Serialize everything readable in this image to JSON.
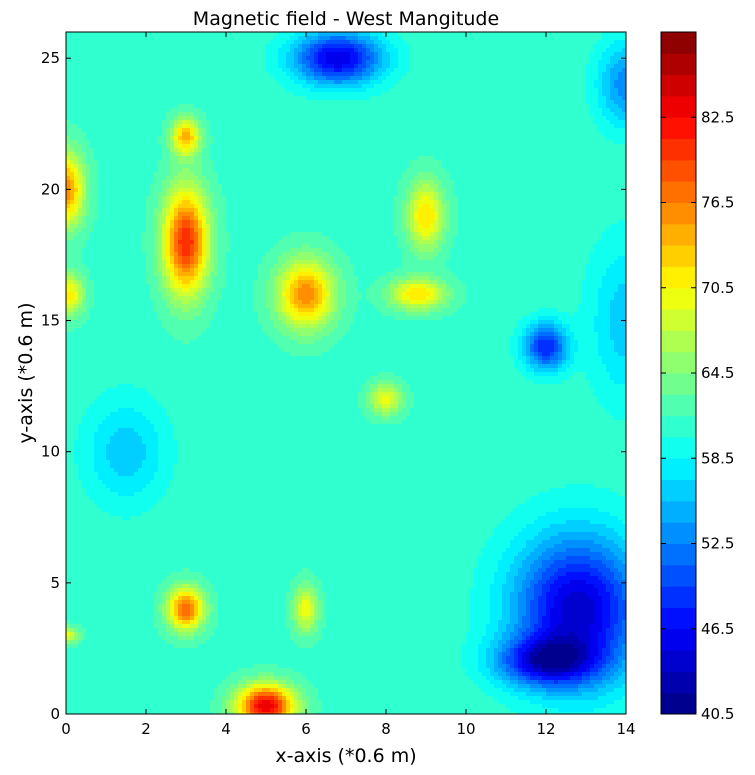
{
  "chart_data": {
    "type": "heatmap",
    "subtype": "filled-contour",
    "title": "Magnetic field - West Mangitude",
    "xlabel": "x-axis (*0.6 m)",
    "ylabel": "y-axis (*0.6 m)",
    "xlim": [
      0,
      14
    ],
    "ylim": [
      0,
      26
    ],
    "x_ticks": [
      0,
      2,
      4,
      6,
      8,
      10,
      12,
      14
    ],
    "y_ticks": [
      0,
      5,
      10,
      15,
      20,
      25
    ],
    "colormap": "jet",
    "colorbar": {
      "range": [
        40.5,
        88.5
      ],
      "level_step": 1.5,
      "tick_values": [
        40.5,
        46.5,
        52.5,
        58.5,
        64.5,
        70.5,
        76.5,
        82.5
      ],
      "tick_labels": [
        "40.5",
        "46.5",
        "52.5",
        "58.5",
        "64.5",
        "70.5",
        "76.5",
        "82.5"
      ]
    },
    "grid": false,
    "background_level": 61,
    "features": [
      {
        "x": 3,
        "y": 18,
        "value": 81,
        "sx": 0.55,
        "sy": 2.0,
        "label": "hotspot"
      },
      {
        "x": 3,
        "y": 22,
        "value": 74,
        "sx": 0.35,
        "sy": 0.7,
        "label": "hotspot"
      },
      {
        "x": 3,
        "y": 4,
        "value": 78,
        "sx": 0.45,
        "sy": 0.8,
        "label": "hotspot"
      },
      {
        "x": 5,
        "y": 0.3,
        "value": 84,
        "sx": 0.7,
        "sy": 0.8,
        "label": "hotspot"
      },
      {
        "x": 6,
        "y": 16,
        "value": 76,
        "sx": 0.7,
        "sy": 1.3,
        "label": "hotspot"
      },
      {
        "x": 8.8,
        "y": 16,
        "value": 72,
        "sx": 0.7,
        "sy": 0.6,
        "label": "hotspot"
      },
      {
        "x": 9,
        "y": 19,
        "value": 72,
        "sx": 0.45,
        "sy": 1.3,
        "label": "hotspot"
      },
      {
        "x": 0,
        "y": 20,
        "value": 76,
        "sx": 0.45,
        "sy": 1.4,
        "label": "hotspot"
      },
      {
        "x": 0.1,
        "y": 16,
        "value": 71,
        "sx": 0.35,
        "sy": 0.8,
        "label": "hotspot"
      },
      {
        "x": 0,
        "y": 3,
        "value": 70,
        "sx": 0.3,
        "sy": 0.3,
        "label": "hotspot"
      },
      {
        "x": 8,
        "y": 12,
        "value": 70,
        "sx": 0.4,
        "sy": 0.6,
        "label": "hotspot"
      },
      {
        "x": 6,
        "y": 4,
        "value": 70,
        "sx": 0.3,
        "sy": 0.9,
        "label": "hotspot"
      },
      {
        "x": 6.8,
        "y": 25,
        "value": 45,
        "sx": 1.1,
        "sy": 1.0,
        "label": "lowspot"
      },
      {
        "x": 12.8,
        "y": 4,
        "value": 44,
        "sx": 1.6,
        "sy": 2.8,
        "label": "lowspot"
      },
      {
        "x": 12,
        "y": 2,
        "value": 48,
        "sx": 1.2,
        "sy": 0.9,
        "label": "lowspot"
      },
      {
        "x": 12,
        "y": 14,
        "value": 48,
        "sx": 0.55,
        "sy": 0.9,
        "label": "lowspot"
      },
      {
        "x": 14,
        "y": 24,
        "value": 53,
        "sx": 0.7,
        "sy": 1.6,
        "label": "lowspot"
      },
      {
        "x": 14,
        "y": 15,
        "value": 56,
        "sx": 0.9,
        "sy": 3.0,
        "label": "lowspot"
      },
      {
        "x": 1.5,
        "y": 10,
        "value": 56,
        "sx": 1.0,
        "sy": 2.0,
        "label": "lowspot"
      }
    ]
  }
}
